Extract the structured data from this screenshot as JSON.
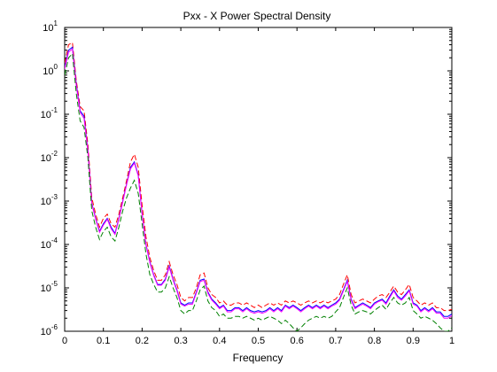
{
  "chart_data": {
    "type": "line",
    "title": "Pxx - X Power Spectral Density",
    "xlabel": "Frequency",
    "ylabel": "",
    "xlim": [
      0,
      1
    ],
    "ylim": [
      1e-06,
      10
    ],
    "yscale": "log",
    "grid": false,
    "legend": "none",
    "x_ticks": [
      "0",
      "0.1",
      "0.2",
      "0.3",
      "0.4",
      "0.5",
      "0.6",
      "0.7",
      "0.8",
      "0.9",
      "1"
    ],
    "y_tick_base": "10",
    "y_tick_exponents": [
      "-6",
      "-5",
      "-4",
      "-3",
      "-2",
      "-1",
      "0",
      "1"
    ],
    "x": [
      0,
      0.01,
      0.02,
      0.03,
      0.04,
      0.05,
      0.06,
      0.07,
      0.08,
      0.09,
      0.1,
      0.11,
      0.12,
      0.13,
      0.14,
      0.15,
      0.16,
      0.17,
      0.18,
      0.19,
      0.2,
      0.21,
      0.22,
      0.23,
      0.24,
      0.25,
      0.26,
      0.27,
      0.28,
      0.29,
      0.3,
      0.31,
      0.32,
      0.33,
      0.34,
      0.35,
      0.36,
      0.37,
      0.38,
      0.39,
      0.4,
      0.41,
      0.42,
      0.43,
      0.44,
      0.45,
      0.46,
      0.47,
      0.48,
      0.49,
      0.5,
      0.51,
      0.52,
      0.53,
      0.54,
      0.55,
      0.56,
      0.57,
      0.58,
      0.59,
      0.6,
      0.61,
      0.62,
      0.63,
      0.64,
      0.65,
      0.66,
      0.67,
      0.68,
      0.69,
      0.7,
      0.71,
      0.72,
      0.73,
      0.74,
      0.75,
      0.76,
      0.77,
      0.78,
      0.79,
      0.8,
      0.81,
      0.82,
      0.83,
      0.84,
      0.85,
      0.86,
      0.87,
      0.88,
      0.89,
      0.9,
      0.91,
      0.92,
      0.93,
      0.94,
      0.95,
      0.96,
      0.97,
      0.98,
      0.99,
      1.0
    ],
    "series": [
      {
        "color": "#ff0000",
        "dash": "dashed",
        "values": [
          1.5,
          4.0,
          4.5,
          0.6,
          0.15,
          0.12,
          0.02,
          0.0012,
          0.0005,
          0.00025,
          0.0004,
          0.0005,
          0.0003,
          0.00025,
          0.0005,
          0.0012,
          0.003,
          0.008,
          0.012,
          0.006,
          0.0008,
          0.00015,
          5e-05,
          2.5e-05,
          1.5e-05,
          1.5e-05,
          2e-05,
          4e-05,
          2e-05,
          1.2e-05,
          6e-06,
          5e-06,
          6e-06,
          6e-06,
          1e-05,
          2e-05,
          2.2e-05,
          1e-05,
          7e-06,
          6e-06,
          4.5e-06,
          5e-06,
          4e-06,
          4e-06,
          4.5e-06,
          4.5e-06,
          4e-06,
          4.5e-06,
          4e-06,
          3.5e-06,
          4e-06,
          3.5e-06,
          4e-06,
          4.5e-06,
          4e-06,
          4.5e-06,
          4e-06,
          5e-06,
          4.5e-06,
          5e-06,
          4.5e-06,
          4e-06,
          4.5e-06,
          5e-06,
          4.5e-06,
          5e-06,
          4.5e-06,
          5e-06,
          4.5e-06,
          5e-06,
          5.5e-06,
          7e-06,
          1.2e-05,
          2e-05,
          7e-06,
          4.5e-06,
          5e-06,
          5.5e-06,
          5e-06,
          4.5e-06,
          5.5e-06,
          6.5e-06,
          7e-06,
          6e-06,
          8e-06,
          1.1e-05,
          8e-06,
          7e-06,
          9e-06,
          1.2e-05,
          6e-06,
          5e-06,
          4e-06,
          4.5e-06,
          4e-06,
          4.5e-06,
          3.5e-06,
          3.5e-06,
          3e-06,
          3e-06,
          3.2e-06
        ]
      },
      {
        "color": "#0000ff",
        "dash": "solid",
        "values": [
          1.2,
          3.0,
          3.5,
          0.5,
          0.12,
          0.09,
          0.015,
          0.0009,
          0.0004,
          0.0002,
          0.0003,
          0.0004,
          0.00025,
          0.00018,
          0.0004,
          0.001,
          0.0025,
          0.006,
          0.008,
          0.004,
          0.0005,
          0.0001,
          4e-05,
          2e-05,
          1.2e-05,
          1.2e-05,
          1.6e-05,
          3.2e-05,
          1.6e-05,
          9e-06,
          4.5e-06,
          4e-06,
          4.5e-06,
          4.5e-06,
          8e-06,
          1.5e-05,
          1.6e-05,
          8e-06,
          5.5e-06,
          4.5e-06,
          3.5e-06,
          4e-06,
          3e-06,
          3e-06,
          3.5e-06,
          3.5e-06,
          3e-06,
          3.5e-06,
          3e-06,
          2.8e-06,
          3e-06,
          2.8e-06,
          3e-06,
          3.5e-06,
          3e-06,
          3.5e-06,
          3e-06,
          4e-06,
          3.5e-06,
          4e-06,
          3.5e-06,
          3e-06,
          3.5e-06,
          4e-06,
          3.5e-06,
          4e-06,
          3.5e-06,
          4e-06,
          3.5e-06,
          4e-06,
          4.5e-06,
          5.5e-06,
          9e-06,
          1.5e-05,
          5.5e-06,
          3.5e-06,
          4e-06,
          4.5e-06,
          4e-06,
          3.5e-06,
          4.5e-06,
          5e-06,
          5.5e-06,
          4.5e-06,
          6.5e-06,
          9e-06,
          6.5e-06,
          5.5e-06,
          7e-06,
          9e-06,
          4.5e-06,
          4e-06,
          3e-06,
          3.5e-06,
          3e-06,
          3.5e-06,
          2.8e-06,
          2.8e-06,
          2.2e-06,
          2.2e-06,
          2.5e-06
        ]
      },
      {
        "color": "#ff00ff",
        "dash": "solid",
        "values": [
          1.1,
          2.7,
          3.2,
          0.45,
          0.11,
          0.08,
          0.014,
          0.00085,
          0.00038,
          0.00019,
          0.00028,
          0.00038,
          0.00023,
          0.00017,
          0.00038,
          0.00095,
          0.0024,
          0.0055,
          0.0075,
          0.0038,
          0.00048,
          9.5e-05,
          3.8e-05,
          1.9e-05,
          1.15e-05,
          1.15e-05,
          1.5e-05,
          3e-05,
          1.5e-05,
          8.5e-06,
          4.2e-06,
          3.8e-06,
          4.2e-06,
          4.2e-06,
          7.5e-06,
          1.4e-05,
          1.5e-05,
          7.5e-06,
          5.2e-06,
          4.2e-06,
          3.3e-06,
          3.8e-06,
          2.8e-06,
          2.8e-06,
          3.3e-06,
          3.3e-06,
          2.8e-06,
          3.3e-06,
          2.8e-06,
          2.6e-06,
          2.8e-06,
          2.6e-06,
          2.8e-06,
          3.3e-06,
          2.8e-06,
          3.3e-06,
          2.8e-06,
          3.8e-06,
          3.3e-06,
          3.8e-06,
          3.3e-06,
          2.8e-06,
          3.3e-06,
          3.8e-06,
          3.3e-06,
          3.8e-06,
          3.3e-06,
          3.8e-06,
          3.3e-06,
          3.8e-06,
          4.2e-06,
          5.2e-06,
          8.5e-06,
          1.4e-05,
          5.2e-06,
          3.3e-06,
          3.8e-06,
          4.2e-06,
          3.8e-06,
          3.3e-06,
          4.2e-06,
          4.8e-06,
          5.2e-06,
          4.2e-06,
          6e-06,
          8.5e-06,
          6e-06,
          5.2e-06,
          6.5e-06,
          8.5e-06,
          4.2e-06,
          3.8e-06,
          2.8e-06,
          3.3e-06,
          2.8e-06,
          3.3e-06,
          2.6e-06,
          2.6e-06,
          2e-06,
          2e-06,
          2.3e-06
        ]
      },
      {
        "color": "#008000",
        "dash": "dashed",
        "values": [
          0.8,
          2.0,
          2.5,
          0.3,
          0.07,
          0.05,
          0.01,
          0.0006,
          0.00025,
          0.00013,
          0.0002,
          0.00025,
          0.00015,
          0.00012,
          0.00025,
          0.0006,
          0.0012,
          0.002,
          0.003,
          0.0015,
          0.0003,
          6e-05,
          2e-05,
          1.2e-05,
          8e-06,
          8e-06,
          1e-05,
          1.8e-05,
          1e-05,
          6e-06,
          3e-06,
          2.5e-06,
          3e-06,
          3e-06,
          5e-06,
          9e-06,
          1.1e-05,
          5e-06,
          3.5e-06,
          3e-06,
          2.2e-06,
          2.5e-06,
          2e-06,
          2e-06,
          2.2e-06,
          2.2e-06,
          2e-06,
          2.2e-06,
          2e-06,
          1.8e-06,
          2e-06,
          1.8e-06,
          2e-06,
          2.2e-06,
          2e-06,
          1.8e-06,
          1.5e-06,
          1.8e-06,
          1.5e-06,
          1.2e-06,
          1e-06,
          1.2e-06,
          1.5e-06,
          1.8e-06,
          2e-06,
          2.2e-06,
          2e-06,
          2.2e-06,
          2e-06,
          2.2e-06,
          2.8e-06,
          3.5e-06,
          6e-06,
          1e-05,
          4e-06,
          2.5e-06,
          2.8e-06,
          3e-06,
          2.8e-06,
          2.5e-06,
          3e-06,
          3.5e-06,
          4e-06,
          3.2e-06,
          4.5e-06,
          6e-06,
          4.5e-06,
          4e-06,
          4.5e-06,
          6e-06,
          3e-06,
          2.5e-06,
          2e-06,
          2.2e-06,
          2e-06,
          1.8e-06,
          1.5e-06,
          1.2e-06,
          1e-06,
          1e-06,
          1.2e-06
        ]
      }
    ]
  }
}
